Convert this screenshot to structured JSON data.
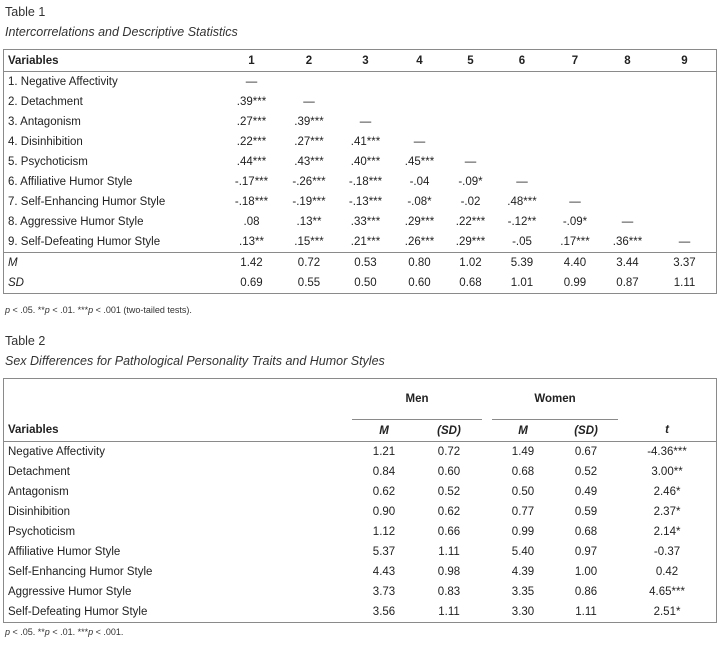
{
  "table1": {
    "number": "Table 1",
    "title": "Intercorrelations and Descriptive Statistics",
    "header": [
      "Variables",
      "1",
      "2",
      "3",
      "4",
      "5",
      "6",
      "7",
      "8",
      "9"
    ],
    "rows": [
      [
        "1. Negative Affectivity",
        "—",
        "",
        "",
        "",
        "",
        "",
        "",
        "",
        ""
      ],
      [
        "2. Detachment",
        ".39***",
        "—",
        "",
        "",
        "",
        "",
        "",
        "",
        ""
      ],
      [
        "3. Antagonism",
        ".27***",
        ".39***",
        "—",
        "",
        "",
        "",
        "",
        "",
        ""
      ],
      [
        "4. Disinhibition",
        ".22***",
        ".27***",
        ".41***",
        "—",
        "",
        "",
        "",
        "",
        ""
      ],
      [
        "5. Psychoticism",
        ".44***",
        ".43***",
        ".40***",
        ".45***",
        "—",
        "",
        "",
        "",
        ""
      ],
      [
        "6. Affiliative Humor Style",
        "-.17***",
        "-.26***",
        "-.18***",
        "-.04",
        "-.09*",
        "—",
        "",
        "",
        ""
      ],
      [
        "7. Self-Enhancing Humor Style",
        "-.18***",
        "-.19***",
        "-.13***",
        "-.08*",
        "-.02",
        ".48***",
        "—",
        "",
        ""
      ],
      [
        "8. Aggressive Humor Style",
        ".08",
        ".13**",
        ".33***",
        ".29***",
        ".22***",
        "-.12**",
        "-.09*",
        "—",
        ""
      ],
      [
        "9. Self-Defeating Humor Style",
        ".13**",
        ".15***",
        ".21***",
        ".26***",
        ".29***",
        "-.05",
        ".17***",
        ".36***",
        "—"
      ]
    ],
    "stats": [
      [
        "M",
        "1.42",
        "0.72",
        "0.53",
        "0.80",
        "1.02",
        "5.39",
        "4.40",
        "3.44",
        "3.37"
      ],
      [
        "SD",
        "0.69",
        "0.55",
        "0.50",
        "0.60",
        "0.68",
        "1.01",
        "0.99",
        "0.87",
        "1.11"
      ]
    ],
    "note": {
      "p1": "p",
      "t1": " < .05. **",
      "p2": "p",
      "t2": " < .01. ***",
      "p3": "p",
      "t3": " < .001 (two-tailed tests)."
    }
  },
  "table2": {
    "number": "Table 2",
    "title": "Sex Differences for Pathological Personality Traits and Humor Styles",
    "group_men": "Men",
    "group_women": "Women",
    "col_variables": "Variables",
    "col_m": "M",
    "col_sd": "(SD)",
    "col_t": "t",
    "rows": [
      [
        "Negative Affectivity",
        "1.21",
        "0.72",
        "1.49",
        "0.67",
        "-4.36***"
      ],
      [
        "Detachment",
        "0.84",
        "0.60",
        "0.68",
        "0.52",
        "3.00**"
      ],
      [
        "Antagonism",
        "0.62",
        "0.52",
        "0.50",
        "0.49",
        "2.46*"
      ],
      [
        "Disinhibition",
        "0.90",
        "0.62",
        "0.77",
        "0.59",
        "2.37*"
      ],
      [
        "Psychoticism",
        "1.12",
        "0.66",
        "0.99",
        "0.68",
        "2.14*"
      ],
      [
        "Affiliative Humor Style",
        "5.37",
        "1.11",
        "5.40",
        "0.97",
        "-0.37"
      ],
      [
        "Self-Enhancing Humor Style",
        "4.43",
        "0.98",
        "4.39",
        "1.00",
        "0.42"
      ],
      [
        "Aggressive Humor Style",
        "3.73",
        "0.83",
        "3.35",
        "0.86",
        "4.65***"
      ],
      [
        "Self-Defeating Humor Style",
        "3.56",
        "1.11",
        "3.30",
        "1.11",
        "2.51*"
      ]
    ],
    "note": {
      "p1": "p",
      "t1": " < .05. **",
      "p2": "p",
      "t2": " < .01. ***",
      "p3": "p",
      "t3": " < .001."
    }
  }
}
